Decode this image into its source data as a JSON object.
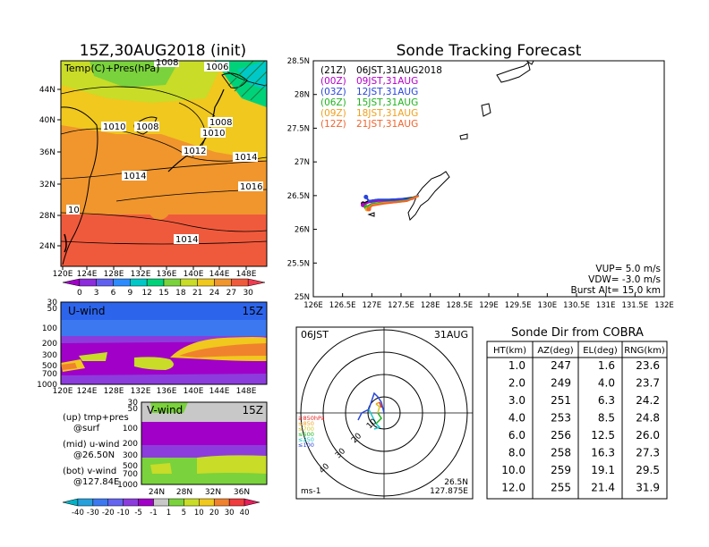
{
  "left": {
    "title": "15Z,30AUG2018 (init)",
    "map_label": "Temp(C)+Pres(hPa)",
    "lat_labels": [
      "44N",
      "40N",
      "36N",
      "32N",
      "28N",
      "24N"
    ],
    "lon_labels": [
      "120E",
      "124E",
      "128E",
      "132E",
      "136E",
      "140E",
      "144E",
      "148E"
    ],
    "isobar_labels": [
      "1008",
      "1006",
      "1010",
      "1008",
      "1008",
      "1010",
      "1012",
      "1014",
      "1014",
      "1016",
      "10",
      "1014"
    ],
    "colorbar_labels": [
      "0",
      "3",
      "6",
      "9",
      "12",
      "15",
      "18",
      "21",
      "24",
      "27",
      "30"
    ],
    "colorbar_colors": [
      "#a000c8",
      "#8c2cdc",
      "#6060f0",
      "#2c8cff",
      "#00c8c8",
      "#00d27a",
      "#7ad23c",
      "#c8dc28",
      "#f0c81e",
      "#f0962d",
      "#f05a3c",
      "#f03c50"
    ],
    "uwind": {
      "label": "U-wind",
      "time": "15Z",
      "levels": [
        "30",
        "50",
        "100",
        "200",
        "300",
        "500",
        "700",
        "1000"
      ]
    },
    "vwind": {
      "label": "V-wind",
      "time": "15Z",
      "levels": [
        "30",
        "50",
        "100",
        "200",
        "300",
        "500",
        "700",
        "1000"
      ],
      "lat_labels": [
        "24N",
        "28N",
        "32N",
        "36N"
      ]
    },
    "notes": [
      "(up) tmp+pres",
      "@surf",
      "(mid) u-wind",
      "@26.50N",
      "(bot) v-wind",
      "@127.84E"
    ],
    "wind_colorbar_labels": [
      "-40",
      "-30",
      "-20",
      "-10",
      "-5",
      "-1",
      "1",
      "5",
      "10",
      "20",
      "30",
      "40"
    ],
    "wind_colorbar_colors": [
      "#00b4c8",
      "#28a0dc",
      "#3c78f0",
      "#6464f0",
      "#8c3cdc",
      "#a000c8",
      "#c8c8c8",
      "#7ad23c",
      "#c8dc28",
      "#f0c81e",
      "#f0822d",
      "#f03c3c",
      "#e61e5a"
    ]
  },
  "track": {
    "title": "Sonde Tracking Forecast",
    "lat_labels": [
      "28.5N",
      "28N",
      "27.5N",
      "27N",
      "26.5N",
      "26N",
      "25.5N",
      "25N"
    ],
    "lon_labels": [
      "126E",
      "126.5E",
      "127E",
      "127.5E",
      "128E",
      "128.5E",
      "129E",
      "129.5E",
      "130E",
      "130.5E",
      "131E",
      "131.5E",
      "132E"
    ],
    "legend": [
      {
        "run": "(21Z)",
        "time": "06JST,31AUG2018",
        "color": "#000000"
      },
      {
        "run": "(00Z)",
        "time": "09JST,31AUG",
        "color": "#b400c8"
      },
      {
        "run": "(03Z)",
        "time": "12JST,31AUG",
        "color": "#2846dc"
      },
      {
        "run": "(06Z)",
        "time": "15JST,31AUG",
        "color": "#1eb41e"
      },
      {
        "run": "(09Z)",
        "time": "18JST,31AUG",
        "color": "#f0a01e"
      },
      {
        "run": "(12Z)",
        "time": "21JST,31AUG",
        "color": "#f0642d"
      }
    ],
    "params": [
      "VUP= 5.0 m/s",
      "VDW= -3.0 m/s",
      "Burst Alt= 15.0 km"
    ]
  },
  "polar": {
    "left_label": "06JST",
    "right_label": "31AUG",
    "ring_labels": [
      "10",
      "20",
      "30",
      "40"
    ],
    "pressure_legend": [
      {
        "text": "≥850hPa",
        "color": "#e61e1e"
      },
      {
        "text": "≤850",
        "color": "#f0a01e"
      },
      {
        "text": "≤700",
        "color": "#d2c81e"
      },
      {
        "text": "≤500",
        "color": "#1eb41e"
      },
      {
        "text": "≤250",
        "color": "#1ec8c8"
      },
      {
        "text": "≤100",
        "color": "#2846dc"
      }
    ],
    "unit": "ms-1",
    "loc_lat": "26.5N",
    "loc_lon": "127.875E"
  },
  "table": {
    "title": "Sonde Dir from COBRA",
    "headers": [
      "HT(km)",
      "AZ(deg)",
      "EL(deg)",
      "RNG(km)"
    ],
    "rows": [
      [
        "1.0",
        "247",
        "1.6",
        "23.6"
      ],
      [
        "2.0",
        "249",
        "4.0",
        "23.7"
      ],
      [
        "3.0",
        "251",
        "6.3",
        "24.2"
      ],
      [
        "4.0",
        "253",
        "8.5",
        "24.8"
      ],
      [
        "6.0",
        "256",
        "12.5",
        "26.0"
      ],
      [
        "8.0",
        "258",
        "16.3",
        "27.3"
      ],
      [
        "10.0",
        "259",
        "19.1",
        "29.5"
      ],
      [
        "12.0",
        "255",
        "21.4",
        "31.9"
      ]
    ]
  },
  "chart_data": [
    {
      "type": "heatmap",
      "title": "15Z,30AUG2018 (init)",
      "label": "Temp(C)+Pres(hPa)",
      "x_ticks": [
        "120E",
        "124E",
        "128E",
        "132E",
        "136E",
        "140E",
        "144E",
        "148E"
      ],
      "y_ticks": [
        "44N",
        "40N",
        "36N",
        "32N",
        "28N",
        "24N"
      ],
      "colorbar": [
        0,
        3,
        6,
        9,
        12,
        15,
        18,
        21,
        24,
        27,
        30
      ]
    },
    {
      "type": "line",
      "title": "Sonde Tracking Forecast",
      "xlim": [
        126,
        132
      ],
      "ylim": [
        25,
        28.5
      ],
      "series": [
        {
          "name": "(21Z) 06JST,31AUG2018",
          "x": [
            126.85,
            126.95,
            127.1,
            127.3,
            127.5,
            127.7,
            127.8
          ],
          "y": [
            26.38,
            26.42,
            26.44,
            26.44,
            26.45,
            26.47,
            26.5
          ]
        },
        {
          "name": "(00Z) 09JST,31AUG",
          "x": [
            126.85,
            126.95,
            127.1,
            127.3,
            127.5,
            127.7,
            127.8
          ],
          "y": [
            26.36,
            26.4,
            26.42,
            26.42,
            26.43,
            26.45,
            26.5
          ]
        },
        {
          "name": "(03Z) 12JST,31AUG",
          "x": [
            126.9,
            126.95,
            127.1,
            127.3,
            127.5,
            127.7,
            127.8
          ],
          "y": [
            26.48,
            26.42,
            26.44,
            26.44,
            26.45,
            26.46,
            26.51
          ]
        },
        {
          "name": "(06Z) 15JST,31AUG",
          "x": [
            126.9,
            127.0,
            127.2,
            127.4,
            127.6,
            127.8
          ],
          "y": [
            26.33,
            26.38,
            26.4,
            26.41,
            26.43,
            26.5
          ]
        },
        {
          "name": "(09Z) 18JST,31AUG",
          "x": [
            126.92,
            127.0,
            127.2,
            127.4,
            127.6,
            127.8
          ],
          "y": [
            26.3,
            26.36,
            26.39,
            26.4,
            26.42,
            26.49
          ]
        },
        {
          "name": "(12Z) 21JST,31AUG",
          "x": [
            126.95,
            127.0,
            127.2,
            127.4,
            127.6,
            127.8
          ],
          "y": [
            26.3,
            26.35,
            26.38,
            26.4,
            26.42,
            26.5
          ]
        }
      ]
    },
    {
      "type": "table",
      "title": "Sonde Dir from COBRA",
      "columns": [
        "HT(km)",
        "AZ(deg)",
        "EL(deg)",
        "RNG(km)"
      ]
    }
  ]
}
